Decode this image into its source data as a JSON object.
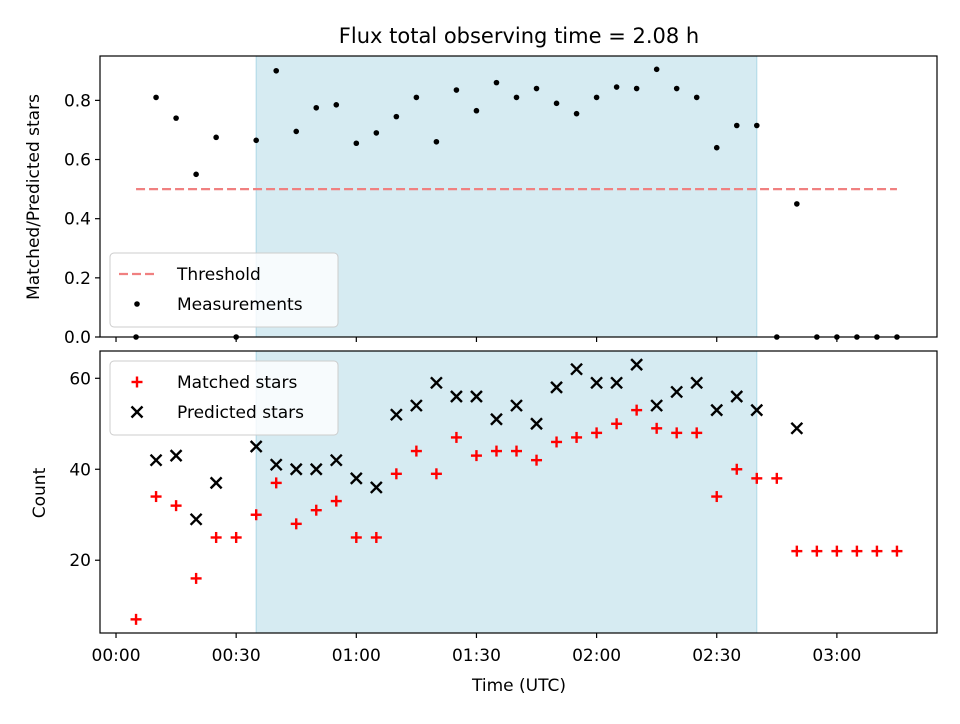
{
  "chart_data": {
    "type": "scatter",
    "title": "Flux total observing time = 2.08 h",
    "xlabel": "Time (UTC)",
    "x_ticks": [
      "00:00",
      "00:30",
      "01:00",
      "01:30",
      "02:00",
      "02:30",
      "03:00"
    ],
    "x_tick_minutes": [
      0,
      30,
      60,
      90,
      120,
      150,
      180
    ],
    "xlim_minutes": [
      -4,
      205
    ],
    "shaded_span_minutes": [
      35,
      160
    ],
    "shaded_color": "#add8e6",
    "panels": [
      {
        "ylabel": "Matched/Predicted stars",
        "ylim": [
          0,
          0.95
        ],
        "y_ticks": [
          0.0,
          0.2,
          0.4,
          0.6,
          0.8
        ],
        "y_tick_labels": [
          "0.0",
          "0.2",
          "0.4",
          "0.6",
          "0.8"
        ],
        "legend_position": "lower-left",
        "threshold": {
          "name": "Threshold",
          "y": 0.5,
          "x_range_minutes": [
            5,
            195
          ],
          "color": "#f08080",
          "style": "dashed"
        },
        "series": [
          {
            "name": "Measurements",
            "marker": "dot",
            "color": "#000000",
            "points": [
              [
                5,
                0.0
              ],
              [
                10,
                0.81
              ],
              [
                15,
                0.74
              ],
              [
                20,
                0.55
              ],
              [
                25,
                0.675
              ],
              [
                30,
                0.0
              ],
              [
                35,
                0.665
              ],
              [
                40,
                0.9
              ],
              [
                45,
                0.695
              ],
              [
                50,
                0.775
              ],
              [
                55,
                0.785
              ],
              [
                60,
                0.655
              ],
              [
                65,
                0.69
              ],
              [
                70,
                0.745
              ],
              [
                75,
                0.81
              ],
              [
                80,
                0.66
              ],
              [
                85,
                0.835
              ],
              [
                90,
                0.765
              ],
              [
                95,
                0.86
              ],
              [
                100,
                0.81
              ],
              [
                105,
                0.84
              ],
              [
                110,
                0.79
              ],
              [
                115,
                0.755
              ],
              [
                120,
                0.81
              ],
              [
                125,
                0.845
              ],
              [
                130,
                0.84
              ],
              [
                135,
                0.905
              ],
              [
                140,
                0.84
              ],
              [
                145,
                0.81
              ],
              [
                150,
                0.64
              ],
              [
                155,
                0.715
              ],
              [
                160,
                0.715
              ],
              [
                165,
                0.0
              ],
              [
                170,
                0.45
              ],
              [
                175,
                0.0
              ],
              [
                180,
                0.0
              ],
              [
                185,
                0.0
              ],
              [
                190,
                0.0
              ],
              [
                195,
                0.0
              ]
            ]
          }
        ]
      },
      {
        "ylabel": "Count",
        "ylim": [
          4,
          66
        ],
        "y_ticks": [
          20,
          40,
          60
        ],
        "y_tick_labels": [
          "20",
          "40",
          "60"
        ],
        "legend_position": "upper-left",
        "series": [
          {
            "name": "Matched stars",
            "marker": "plus",
            "color": "#ff0000",
            "points": [
              [
                5,
                7
              ],
              [
                10,
                34
              ],
              [
                15,
                32
              ],
              [
                20,
                16
              ],
              [
                25,
                25
              ],
              [
                30,
                25
              ],
              [
                35,
                30
              ],
              [
                40,
                37
              ],
              [
                45,
                28
              ],
              [
                50,
                31
              ],
              [
                55,
                33
              ],
              [
                60,
                25
              ],
              [
                65,
                25
              ],
              [
                70,
                39
              ],
              [
                75,
                44
              ],
              [
                80,
                39
              ],
              [
                85,
                47
              ],
              [
                90,
                43
              ],
              [
                95,
                44
              ],
              [
                100,
                44
              ],
              [
                105,
                42
              ],
              [
                110,
                46
              ],
              [
                115,
                47
              ],
              [
                120,
                48
              ],
              [
                125,
                50
              ],
              [
                130,
                53
              ],
              [
                135,
                49
              ],
              [
                140,
                48
              ],
              [
                145,
                48
              ],
              [
                150,
                34
              ],
              [
                155,
                40
              ],
              [
                160,
                38
              ],
              [
                165,
                38
              ],
              [
                170,
                22
              ],
              [
                175,
                22
              ],
              [
                180,
                22
              ],
              [
                185,
                22
              ],
              [
                190,
                22
              ],
              [
                195,
                22
              ]
            ]
          },
          {
            "name": "Predicted stars",
            "marker": "x",
            "color": "#000000",
            "points": [
              [
                10,
                42
              ],
              [
                15,
                43
              ],
              [
                20,
                29
              ],
              [
                25,
                37
              ],
              [
                35,
                45
              ],
              [
                40,
                41
              ],
              [
                45,
                40
              ],
              [
                50,
                40
              ],
              [
                55,
                42
              ],
              [
                60,
                38
              ],
              [
                65,
                36
              ],
              [
                70,
                52
              ],
              [
                75,
                54
              ],
              [
                80,
                59
              ],
              [
                85,
                56
              ],
              [
                90,
                56
              ],
              [
                95,
                51
              ],
              [
                100,
                54
              ],
              [
                105,
                50
              ],
              [
                110,
                58
              ],
              [
                115,
                62
              ],
              [
                120,
                59
              ],
              [
                125,
                59
              ],
              [
                130,
                63
              ],
              [
                135,
                54
              ],
              [
                140,
                57
              ],
              [
                145,
                59
              ],
              [
                150,
                53
              ],
              [
                155,
                56
              ],
              [
                160,
                53
              ],
              [
                170,
                49
              ]
            ]
          }
        ]
      }
    ]
  }
}
